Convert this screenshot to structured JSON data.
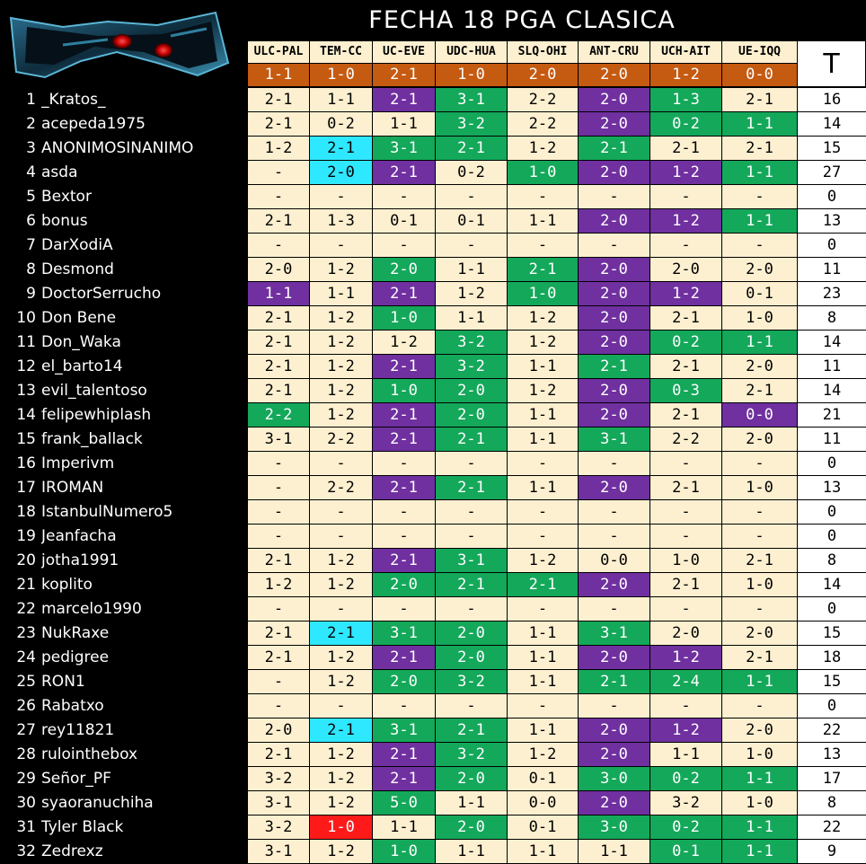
{
  "title": "FECHA 18 PGA CLASICA",
  "total_header": "T",
  "matches": [
    {
      "code": "ULC-PAL",
      "result": "1-1"
    },
    {
      "code": "TEM-CC",
      "result": "1-0"
    },
    {
      "code": "UC-EVE",
      "result": "2-1"
    },
    {
      "code": "UDC-HUA",
      "result": "1-0"
    },
    {
      "code": "SLQ-OHI",
      "result": "2-0"
    },
    {
      "code": "ANT-CRU",
      "result": "2-0"
    },
    {
      "code": "UCH-AIT",
      "result": "1-2"
    },
    {
      "code": "UE-IQQ",
      "result": "0-0"
    }
  ],
  "colors": {
    "cream": "#fdf0d0",
    "exact_hit": "#7030a0",
    "outcome_hit": "#14a85a",
    "special_cyan": "#2ee8ff",
    "special_red": "#ff1a1a",
    "results_bar": "#c55a11"
  },
  "rows": [
    {
      "num": "1",
      "name": "_Kratos_",
      "total": "16",
      "cells": [
        [
          "2-1",
          ""
        ],
        [
          "1-1",
          ""
        ],
        [
          "2-1",
          "purple"
        ],
        [
          "3-1",
          "green"
        ],
        [
          "2-2",
          ""
        ],
        [
          "2-0",
          "purple"
        ],
        [
          "1-3",
          "green"
        ],
        [
          "2-1",
          ""
        ]
      ]
    },
    {
      "num": "2",
      "name": "acepeda1975",
      "total": "14",
      "cells": [
        [
          "2-1",
          ""
        ],
        [
          "0-2",
          ""
        ],
        [
          "1-1",
          ""
        ],
        [
          "3-2",
          "green"
        ],
        [
          "2-2",
          ""
        ],
        [
          "2-0",
          "purple"
        ],
        [
          "0-2",
          "green"
        ],
        [
          "1-1",
          "green"
        ]
      ]
    },
    {
      "num": "3",
      "name": "ANONIMOSINANIMO",
      "total": "15",
      "cells": [
        [
          "1-2",
          ""
        ],
        [
          "2-1",
          "cyan"
        ],
        [
          "3-1",
          "green"
        ],
        [
          "2-1",
          "green"
        ],
        [
          "1-2",
          ""
        ],
        [
          "2-1",
          "green"
        ],
        [
          "2-1",
          ""
        ],
        [
          "2-1",
          ""
        ]
      ]
    },
    {
      "num": "4",
      "name": "asda",
      "total": "27",
      "cells": [
        [
          "-",
          ""
        ],
        [
          "2-0",
          "cyan"
        ],
        [
          "2-1",
          "purple"
        ],
        [
          "0-2",
          ""
        ],
        [
          "1-0",
          "green"
        ],
        [
          "2-0",
          "purple"
        ],
        [
          "1-2",
          "purple"
        ],
        [
          "1-1",
          "green"
        ]
      ]
    },
    {
      "num": "5",
      "name": "Bextor",
      "total": "0",
      "cells": [
        [
          "-",
          ""
        ],
        [
          "-",
          ""
        ],
        [
          "-",
          ""
        ],
        [
          "-",
          ""
        ],
        [
          "-",
          ""
        ],
        [
          "-",
          ""
        ],
        [
          "-",
          ""
        ],
        [
          "-",
          ""
        ]
      ]
    },
    {
      "num": "6",
      "name": "bonus",
      "total": "13",
      "cells": [
        [
          "2-1",
          ""
        ],
        [
          "1-3",
          ""
        ],
        [
          "0-1",
          ""
        ],
        [
          "0-1",
          ""
        ],
        [
          "1-1",
          ""
        ],
        [
          "2-0",
          "purple"
        ],
        [
          "1-2",
          "purple"
        ],
        [
          "1-1",
          "green"
        ]
      ]
    },
    {
      "num": "7",
      "name": "DarXodiA",
      "total": "0",
      "cells": [
        [
          "-",
          ""
        ],
        [
          "-",
          ""
        ],
        [
          "-",
          ""
        ],
        [
          "-",
          ""
        ],
        [
          "-",
          ""
        ],
        [
          "-",
          ""
        ],
        [
          "-",
          ""
        ],
        [
          "-",
          ""
        ]
      ]
    },
    {
      "num": "8",
      "name": "Desmond",
      "total": "11",
      "cells": [
        [
          "2-0",
          ""
        ],
        [
          "1-2",
          ""
        ],
        [
          "2-0",
          "green"
        ],
        [
          "1-1",
          ""
        ],
        [
          "2-1",
          "green"
        ],
        [
          "2-0",
          "purple"
        ],
        [
          "2-0",
          ""
        ],
        [
          "2-0",
          ""
        ]
      ]
    },
    {
      "num": "9",
      "name": "DoctorSerrucho",
      "total": "23",
      "cells": [
        [
          "1-1",
          "purple"
        ],
        [
          "1-1",
          ""
        ],
        [
          "2-1",
          "purple"
        ],
        [
          "1-2",
          ""
        ],
        [
          "1-0",
          "green"
        ],
        [
          "2-0",
          "purple"
        ],
        [
          "1-2",
          "purple"
        ],
        [
          "0-1",
          ""
        ]
      ]
    },
    {
      "num": "10",
      "name": "Don Bene",
      "total": "8",
      "cells": [
        [
          "2-1",
          ""
        ],
        [
          "1-2",
          ""
        ],
        [
          "1-0",
          "green"
        ],
        [
          "1-1",
          ""
        ],
        [
          "1-2",
          ""
        ],
        [
          "2-0",
          "purple"
        ],
        [
          "2-1",
          ""
        ],
        [
          "1-0",
          ""
        ]
      ]
    },
    {
      "num": "11",
      "name": "Don_Waka",
      "total": "14",
      "cells": [
        [
          "2-1",
          ""
        ],
        [
          "1-2",
          ""
        ],
        [
          "1-2",
          ""
        ],
        [
          "3-2",
          "green"
        ],
        [
          "1-2",
          ""
        ],
        [
          "2-0",
          "purple"
        ],
        [
          "0-2",
          "green"
        ],
        [
          "1-1",
          "green"
        ]
      ]
    },
    {
      "num": "12",
      "name": "el_barto14",
      "total": "11",
      "cells": [
        [
          "2-1",
          ""
        ],
        [
          "1-2",
          ""
        ],
        [
          "2-1",
          "purple"
        ],
        [
          "3-2",
          "green"
        ],
        [
          "1-1",
          ""
        ],
        [
          "2-1",
          "green"
        ],
        [
          "2-1",
          ""
        ],
        [
          "2-0",
          ""
        ]
      ]
    },
    {
      "num": "13",
      "name": "evil_talentoso",
      "total": "14",
      "cells": [
        [
          "2-1",
          ""
        ],
        [
          "1-2",
          ""
        ],
        [
          "1-0",
          "green"
        ],
        [
          "2-0",
          "green"
        ],
        [
          "1-2",
          ""
        ],
        [
          "2-0",
          "purple"
        ],
        [
          "0-3",
          "green"
        ],
        [
          "2-1",
          ""
        ]
      ]
    },
    {
      "num": "14",
      "name": "felipewhiplash",
      "total": "21",
      "cells": [
        [
          "2-2",
          "green"
        ],
        [
          "1-2",
          ""
        ],
        [
          "2-1",
          "purple"
        ],
        [
          "2-0",
          "green"
        ],
        [
          "1-1",
          ""
        ],
        [
          "2-0",
          "purple"
        ],
        [
          "2-1",
          ""
        ],
        [
          "0-0",
          "purple"
        ]
      ]
    },
    {
      "num": "15",
      "name": "frank_ballack",
      "total": "11",
      "cells": [
        [
          "3-1",
          ""
        ],
        [
          "2-2",
          ""
        ],
        [
          "2-1",
          "purple"
        ],
        [
          "2-1",
          "green"
        ],
        [
          "1-1",
          ""
        ],
        [
          "3-1",
          "green"
        ],
        [
          "2-2",
          ""
        ],
        [
          "2-0",
          ""
        ]
      ]
    },
    {
      "num": "16",
      "name": "Imperivm",
      "total": "0",
      "cells": [
        [
          "-",
          ""
        ],
        [
          "-",
          ""
        ],
        [
          "-",
          ""
        ],
        [
          "-",
          ""
        ],
        [
          "-",
          ""
        ],
        [
          "-",
          ""
        ],
        [
          "-",
          ""
        ],
        [
          "-",
          ""
        ]
      ]
    },
    {
      "num": "17",
      "name": "IROMAN",
      "total": "13",
      "cells": [
        [
          "-",
          ""
        ],
        [
          "2-2",
          ""
        ],
        [
          "2-1",
          "purple"
        ],
        [
          "2-1",
          "green"
        ],
        [
          "1-1",
          ""
        ],
        [
          "2-0",
          "purple"
        ],
        [
          "2-1",
          ""
        ],
        [
          "1-0",
          ""
        ]
      ]
    },
    {
      "num": "18",
      "name": "IstanbulNumero5",
      "total": "0",
      "cells": [
        [
          "-",
          ""
        ],
        [
          "-",
          ""
        ],
        [
          "-",
          ""
        ],
        [
          "-",
          ""
        ],
        [
          "-",
          ""
        ],
        [
          "-",
          ""
        ],
        [
          "-",
          ""
        ],
        [
          "-",
          ""
        ]
      ]
    },
    {
      "num": "19",
      "name": "Jeanfacha",
      "total": "0",
      "cells": [
        [
          "-",
          ""
        ],
        [
          "-",
          ""
        ],
        [
          "-",
          ""
        ],
        [
          "-",
          ""
        ],
        [
          "-",
          ""
        ],
        [
          "-",
          ""
        ],
        [
          "-",
          ""
        ],
        [
          "-",
          ""
        ]
      ]
    },
    {
      "num": "20",
      "name": "jotha1991",
      "total": "8",
      "cells": [
        [
          "2-1",
          ""
        ],
        [
          "1-2",
          ""
        ],
        [
          "2-1",
          "purple"
        ],
        [
          "3-1",
          "green"
        ],
        [
          "1-2",
          ""
        ],
        [
          "0-0",
          ""
        ],
        [
          "1-0",
          ""
        ],
        [
          "2-1",
          ""
        ]
      ]
    },
    {
      "num": "21",
      "name": "koplito",
      "total": "14",
      "cells": [
        [
          "1-2",
          ""
        ],
        [
          "1-2",
          ""
        ],
        [
          "2-0",
          "green"
        ],
        [
          "2-1",
          "green"
        ],
        [
          "2-1",
          "green"
        ],
        [
          "2-0",
          "purple"
        ],
        [
          "2-1",
          ""
        ],
        [
          "1-0",
          ""
        ]
      ]
    },
    {
      "num": "22",
      "name": "marcelo1990",
      "total": "0",
      "cells": [
        [
          "-",
          ""
        ],
        [
          "-",
          ""
        ],
        [
          "-",
          ""
        ],
        [
          "-",
          ""
        ],
        [
          "-",
          ""
        ],
        [
          "-",
          ""
        ],
        [
          "-",
          ""
        ],
        [
          "-",
          ""
        ]
      ]
    },
    {
      "num": "23",
      "name": "NukRaxe",
      "total": "15",
      "cells": [
        [
          "2-1",
          ""
        ],
        [
          "2-1",
          "cyan"
        ],
        [
          "3-1",
          "green"
        ],
        [
          "2-0",
          "green"
        ],
        [
          "1-1",
          ""
        ],
        [
          "3-1",
          "green"
        ],
        [
          "2-0",
          ""
        ],
        [
          "2-0",
          ""
        ]
      ]
    },
    {
      "num": "24",
      "name": "pedigree",
      "total": "18",
      "cells": [
        [
          "2-1",
          ""
        ],
        [
          "1-2",
          ""
        ],
        [
          "2-1",
          "purple"
        ],
        [
          "2-0",
          "green"
        ],
        [
          "1-1",
          ""
        ],
        [
          "2-0",
          "purple"
        ],
        [
          "1-2",
          "purple"
        ],
        [
          "2-1",
          ""
        ]
      ]
    },
    {
      "num": "25",
      "name": "RON1",
      "total": "15",
      "cells": [
        [
          "-",
          ""
        ],
        [
          "1-2",
          ""
        ],
        [
          "2-0",
          "green"
        ],
        [
          "3-2",
          "green"
        ],
        [
          "1-1",
          ""
        ],
        [
          "2-1",
          "green"
        ],
        [
          "2-4",
          "green"
        ],
        [
          "1-1",
          "green"
        ]
      ]
    },
    {
      "num": "26",
      "name": "Rabatxo",
      "total": "0",
      "cells": [
        [
          "-",
          ""
        ],
        [
          "-",
          ""
        ],
        [
          "-",
          ""
        ],
        [
          "-",
          ""
        ],
        [
          "-",
          ""
        ],
        [
          "-",
          ""
        ],
        [
          "-",
          ""
        ],
        [
          "-",
          ""
        ]
      ]
    },
    {
      "num": "27",
      "name": "rey11821",
      "total": "22",
      "cells": [
        [
          "2-0",
          ""
        ],
        [
          "2-1",
          "cyan"
        ],
        [
          "3-1",
          "green"
        ],
        [
          "2-1",
          "green"
        ],
        [
          "1-1",
          ""
        ],
        [
          "2-0",
          "purple"
        ],
        [
          "1-2",
          "purple"
        ],
        [
          "2-0",
          ""
        ]
      ]
    },
    {
      "num": "28",
      "name": "rulointhebox",
      "total": "13",
      "cells": [
        [
          "2-1",
          ""
        ],
        [
          "1-2",
          ""
        ],
        [
          "2-1",
          "purple"
        ],
        [
          "3-2",
          "green"
        ],
        [
          "1-2",
          ""
        ],
        [
          "2-0",
          "purple"
        ],
        [
          "1-1",
          ""
        ],
        [
          "1-0",
          ""
        ]
      ]
    },
    {
      "num": "29",
      "name": "Señor_PF",
      "total": "17",
      "cells": [
        [
          "3-2",
          ""
        ],
        [
          "1-2",
          ""
        ],
        [
          "2-1",
          "purple"
        ],
        [
          "2-0",
          "green"
        ],
        [
          "0-1",
          ""
        ],
        [
          "3-0",
          "green"
        ],
        [
          "0-2",
          "green"
        ],
        [
          "1-1",
          "green"
        ]
      ]
    },
    {
      "num": "30",
      "name": "syaoranuchiha",
      "total": "8",
      "cells": [
        [
          "3-1",
          ""
        ],
        [
          "1-2",
          ""
        ],
        [
          "5-0",
          "green"
        ],
        [
          "1-1",
          ""
        ],
        [
          "0-0",
          ""
        ],
        [
          "2-0",
          "purple"
        ],
        [
          "3-2",
          ""
        ],
        [
          "1-0",
          ""
        ]
      ]
    },
    {
      "num": "31",
      "name": "Tyler Black",
      "total": "22",
      "cells": [
        [
          "3-2",
          ""
        ],
        [
          "1-0",
          "red"
        ],
        [
          "1-1",
          ""
        ],
        [
          "2-0",
          "green"
        ],
        [
          "0-1",
          ""
        ],
        [
          "3-0",
          "green"
        ],
        [
          "0-2",
          "green"
        ],
        [
          "1-1",
          "green"
        ]
      ]
    },
    {
      "num": "32",
      "name": "Zedrexz",
      "total": "9",
      "cells": [
        [
          "3-1",
          ""
        ],
        [
          "1-2",
          ""
        ],
        [
          "1-0",
          "green"
        ],
        [
          "1-1",
          ""
        ],
        [
          "1-1",
          ""
        ],
        [
          "1-1",
          ""
        ],
        [
          "0-1",
          "green"
        ],
        [
          "1-1",
          "green"
        ]
      ]
    }
  ]
}
